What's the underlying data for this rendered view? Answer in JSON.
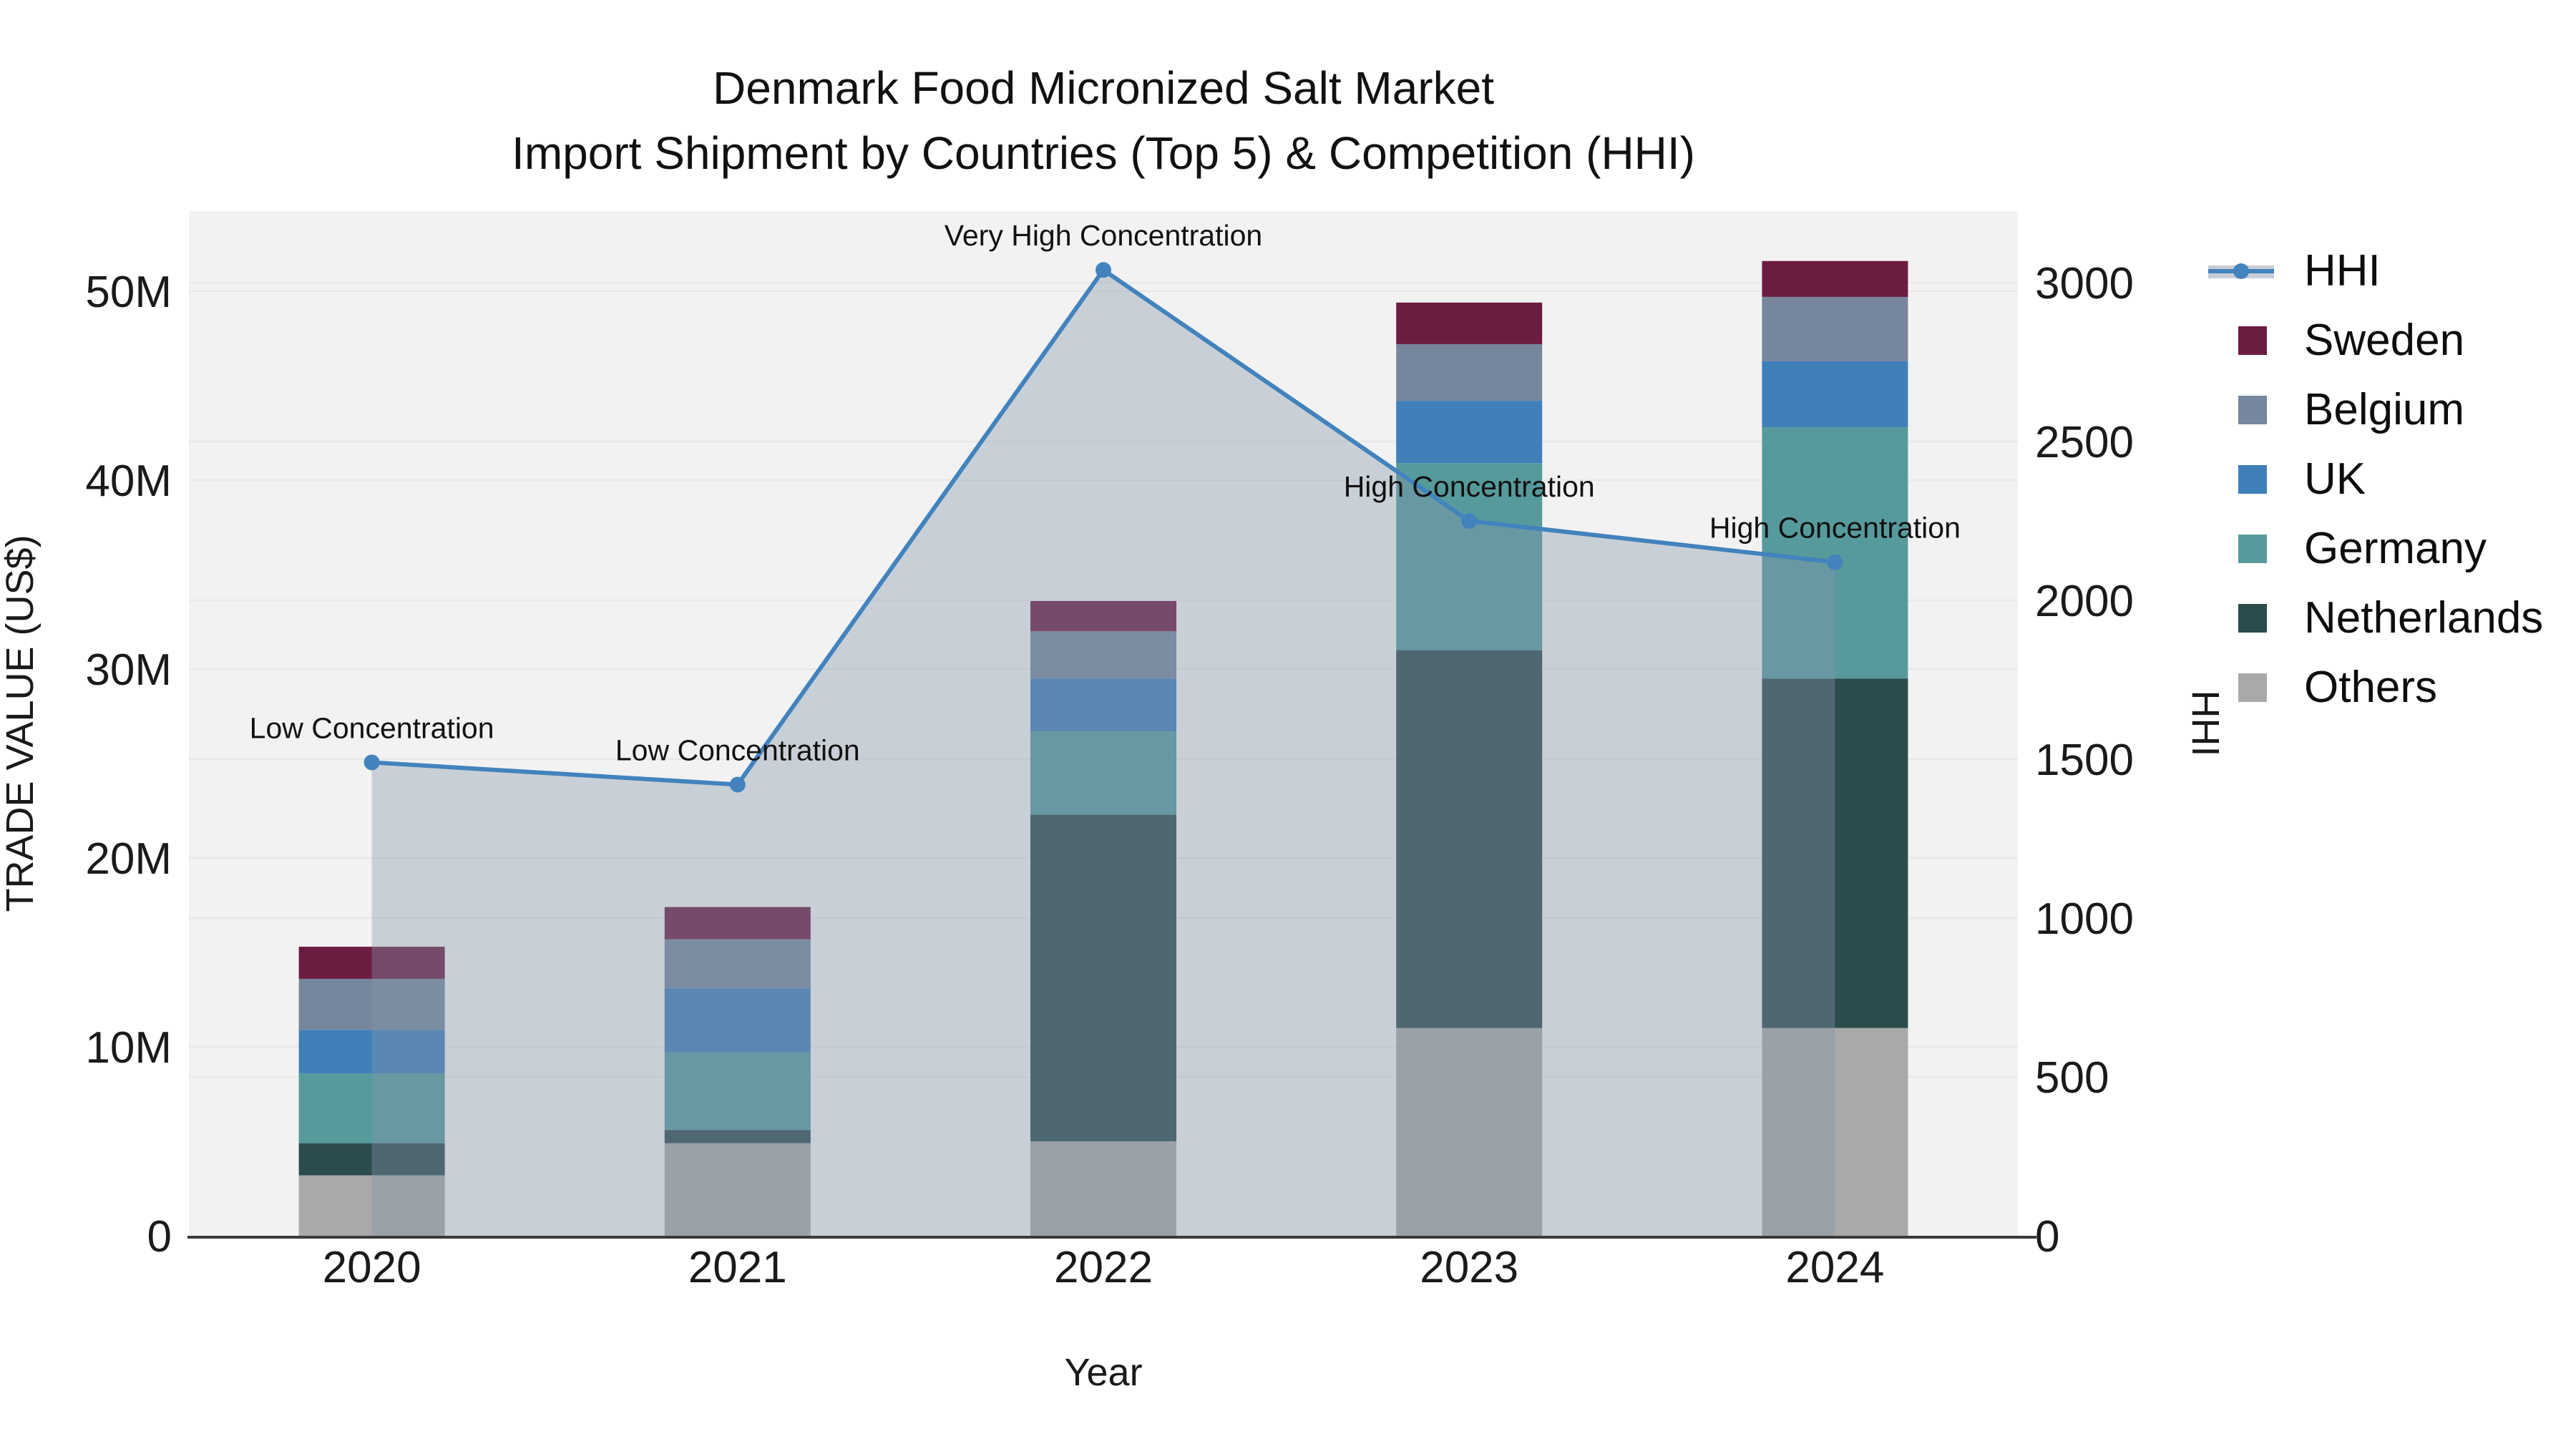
{
  "title": {
    "line1": "Denmark Food Micronized Salt Market",
    "line2": "Import Shipment by Countries (Top 5) & Competition (HHI)"
  },
  "legend": {
    "items": [
      {
        "label": "HHI",
        "type": "line",
        "color": "#4283bd",
        "band": "#c6cdd6"
      },
      {
        "label": "Sweden",
        "type": "box",
        "color": "#6d1c41"
      },
      {
        "label": "Belgium",
        "type": "box",
        "color": "#76869c"
      },
      {
        "label": "UK",
        "type": "box",
        "color": "#3f7fba"
      },
      {
        "label": "Germany",
        "type": "box",
        "color": "#569a9c"
      },
      {
        "label": "Netherlands",
        "type": "box",
        "color": "#2c4b4d"
      },
      {
        "label": "Others",
        "type": "box",
        "color": "#a9a9a9"
      }
    ]
  },
  "chart_data": {
    "type": "stacked-bar+line",
    "title": "Denmark Food Micronized Salt Market Import Shipment by Countries (Top 5) & Competition (HHI)",
    "categories": [
      "2020",
      "2021",
      "2022",
      "2023",
      "2024"
    ],
    "bar_value_unit": "million US$",
    "series": [
      {
        "name": "Others",
        "color": "#a9a9a9",
        "values": [
          3.2,
          4.9,
          5.0,
          11.0,
          11.0
        ]
      },
      {
        "name": "Netherlands",
        "color": "#2c4b4d",
        "values": [
          1.7,
          0.7,
          17.3,
          20.0,
          18.5
        ]
      },
      {
        "name": "Germany",
        "color": "#569a9c",
        "values": [
          3.7,
          4.1,
          4.4,
          9.9,
          13.3
        ]
      },
      {
        "name": "UK",
        "color": "#3f7fba",
        "values": [
          2.3,
          3.4,
          2.8,
          3.3,
          3.5
        ]
      },
      {
        "name": "Belgium",
        "color": "#76869c",
        "values": [
          2.7,
          2.6,
          2.5,
          3.0,
          3.4
        ]
      },
      {
        "name": "Sweden",
        "color": "#6d1c41",
        "values": [
          1.7,
          1.7,
          1.6,
          2.2,
          1.9
        ]
      }
    ],
    "hhi": {
      "name": "HHI",
      "color": "#4283bd",
      "fill": "rgba(134,151,172,0.38)",
      "marker_radius": 11,
      "values": [
        1490,
        1420,
        3040,
        2250,
        2120
      ],
      "annotations": [
        "Low Concentration",
        "Low Concentration",
        "Very High Concentration",
        "High Concentration",
        "High Concentration"
      ]
    },
    "axes": {
      "x": {
        "title": "Year"
      },
      "left": {
        "title": "TRADE VALUE (US$)",
        "max": 54.2,
        "ticks": [
          {
            "v": 0,
            "label": "0"
          },
          {
            "v": 10,
            "label": "10M"
          },
          {
            "v": 20,
            "label": "20M"
          },
          {
            "v": 30,
            "label": "30M"
          },
          {
            "v": 40,
            "label": "40M"
          },
          {
            "v": 50,
            "label": "50M"
          }
        ]
      },
      "right": {
        "title": "HHI",
        "max": 3225,
        "ticks": [
          {
            "v": 0,
            "label": "0"
          },
          {
            "v": 500,
            "label": "500"
          },
          {
            "v": 1000,
            "label": "1000"
          },
          {
            "v": 1500,
            "label": "1500"
          },
          {
            "v": 2000,
            "label": "2000"
          },
          {
            "v": 2500,
            "label": "2500"
          },
          {
            "v": 3000,
            "label": "3000"
          }
        ]
      }
    },
    "style": {
      "plot_bg": "#f2f2f2",
      "grid": "#e7e8e8",
      "baseline": "#3a3a3a",
      "text": "#1a1a1a"
    }
  }
}
